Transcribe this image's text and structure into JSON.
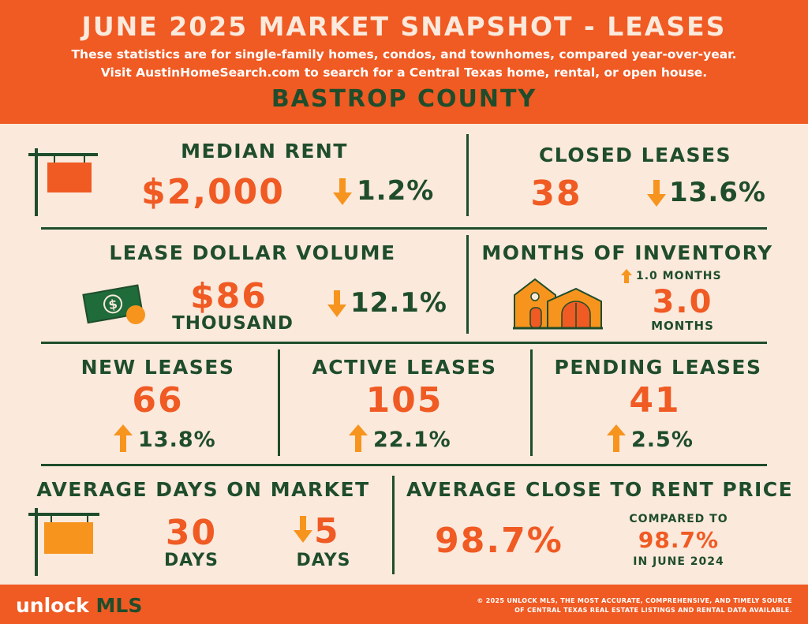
{
  "header": {
    "title": "JUNE 2025 MARKET SNAPSHOT - LEASES",
    "subtitle_line1": "These statistics are for single-family homes, condos, and townhomes, compared year-over-year.",
    "subtitle_line2": "Visit AustinHomeSearch.com to search for a Central Texas home, rental, or open house.",
    "county": "BASTROP COUNTY"
  },
  "median_rent": {
    "label": "MEDIAN RENT",
    "value": "$2,000",
    "change": "1.2%",
    "direction": "down"
  },
  "closed_leases": {
    "label": "CLOSED LEASES",
    "value": "38",
    "change": "13.6%",
    "direction": "down"
  },
  "lease_volume": {
    "label": "LEASE DOLLAR VOLUME",
    "value": "$86",
    "unit": "THOUSAND",
    "change": "12.1%",
    "direction": "down"
  },
  "months_inventory": {
    "label": "MONTHS OF INVENTORY",
    "change": "1.0  MONTHS",
    "direction": "up",
    "value": "3.0",
    "unit": "MONTHS"
  },
  "new_leases": {
    "label": "NEW LEASES",
    "value": "66",
    "change": "13.8%",
    "direction": "up"
  },
  "active_leases": {
    "label": "ACTIVE LEASES",
    "value": "105",
    "change": "22.1%",
    "direction": "up"
  },
  "pending_leases": {
    "label": "PENDING LEASES",
    "value": "41",
    "change": "2.5%",
    "direction": "up"
  },
  "avg_dom": {
    "label": "AVERAGE DAYS ON MARKET",
    "value": "30",
    "unit": "DAYS",
    "change": "5",
    "change_unit": "DAYS",
    "direction": "down"
  },
  "close_to_rent": {
    "label": "AVERAGE CLOSE TO RENT PRICE",
    "value": "98.7%",
    "compared_label": "COMPARED TO",
    "compared_value": "98.7%",
    "compared_period": "IN JUNE 2024"
  },
  "footer": {
    "logo_unlock": "unlock",
    "logo_mls": "MLS",
    "note_line1": "© 2025 UNLOCK MLS, THE MOST ACCURATE, COMPREHENSIVE, AND TIMELY SOURCE",
    "note_line2": "OF CENTRAL TEXAS REAL ESTATE LISTINGS AND RENTAL DATA AVAILABLE."
  },
  "colors": {
    "orange": "#f05a23",
    "arrow_orange": "#f7941d",
    "green": "#1f4d2b",
    "cream": "#fbe9dc"
  },
  "icons": [
    "sign-icon",
    "money-icon",
    "house-icon",
    "arrow-down-icon",
    "arrow-up-icon"
  ]
}
